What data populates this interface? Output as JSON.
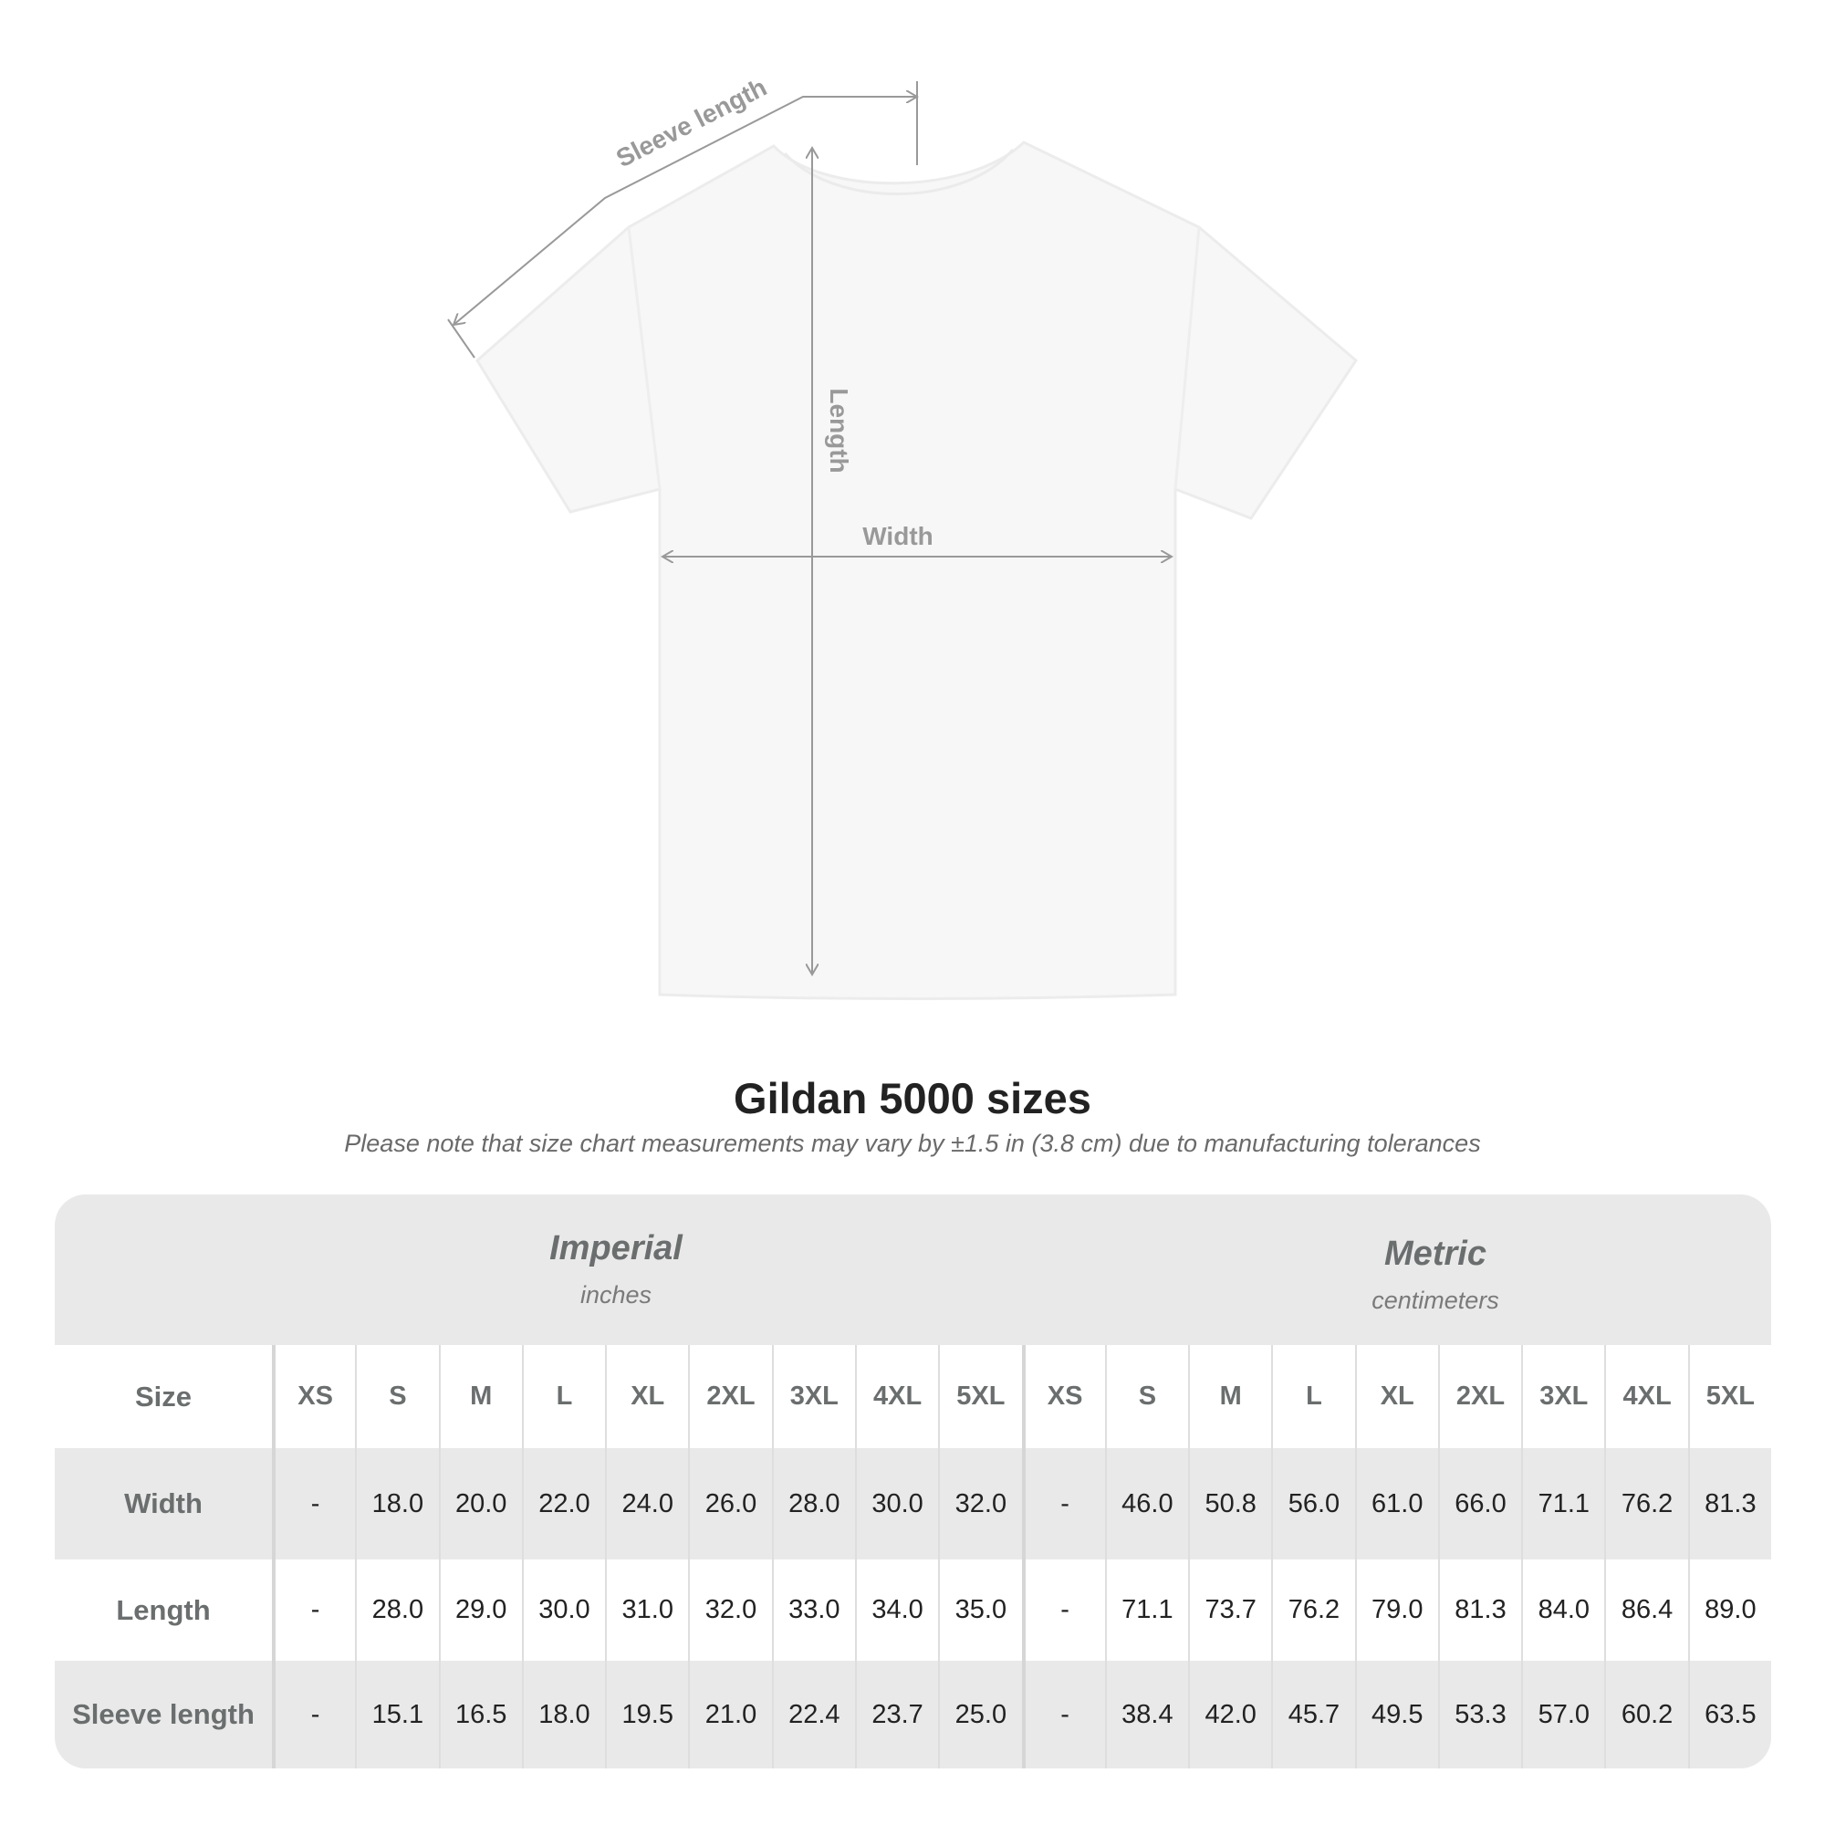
{
  "diagram": {
    "labels": {
      "sleeve": "Sleeve length",
      "length": "Length",
      "width": "Width"
    }
  },
  "title": "Gildan 5000 sizes",
  "subtitle": "Please note that size chart measurements may vary by ±1.5 in (3.8 cm) due to manufacturing tolerances",
  "table": {
    "imperial": {
      "name": "Imperial",
      "unit": "inches"
    },
    "metric": {
      "name": "Metric",
      "unit": "centimeters"
    },
    "size_label": "Size",
    "sizes": [
      "XS",
      "S",
      "M",
      "L",
      "XL",
      "2XL",
      "3XL",
      "4XL",
      "5XL"
    ],
    "rows": [
      {
        "label": "Width",
        "imperial": [
          "-",
          "18.0",
          "20.0",
          "22.0",
          "24.0",
          "26.0",
          "28.0",
          "30.0",
          "32.0"
        ],
        "metric": [
          "-",
          "46.0",
          "50.8",
          "56.0",
          "61.0",
          "66.0",
          "71.1",
          "76.2",
          "81.3"
        ]
      },
      {
        "label": "Length",
        "imperial": [
          "-",
          "28.0",
          "29.0",
          "30.0",
          "31.0",
          "32.0",
          "33.0",
          "34.0",
          "35.0"
        ],
        "metric": [
          "-",
          "71.1",
          "73.7",
          "76.2",
          "79.0",
          "81.3",
          "84.0",
          "86.4",
          "89.0"
        ]
      },
      {
        "label": "Sleeve length",
        "imperial": [
          "-",
          "15.1",
          "16.5",
          "18.0",
          "19.5",
          "21.0",
          "22.4",
          "23.7",
          "25.0"
        ],
        "metric": [
          "-",
          "38.4",
          "42.0",
          "45.7",
          "49.5",
          "53.3",
          "57.0",
          "60.2",
          "63.5"
        ]
      }
    ]
  },
  "colors": {
    "header_bg": "#e9e9e9",
    "label_text": "#6b6e6e",
    "measure_line": "#999999"
  }
}
